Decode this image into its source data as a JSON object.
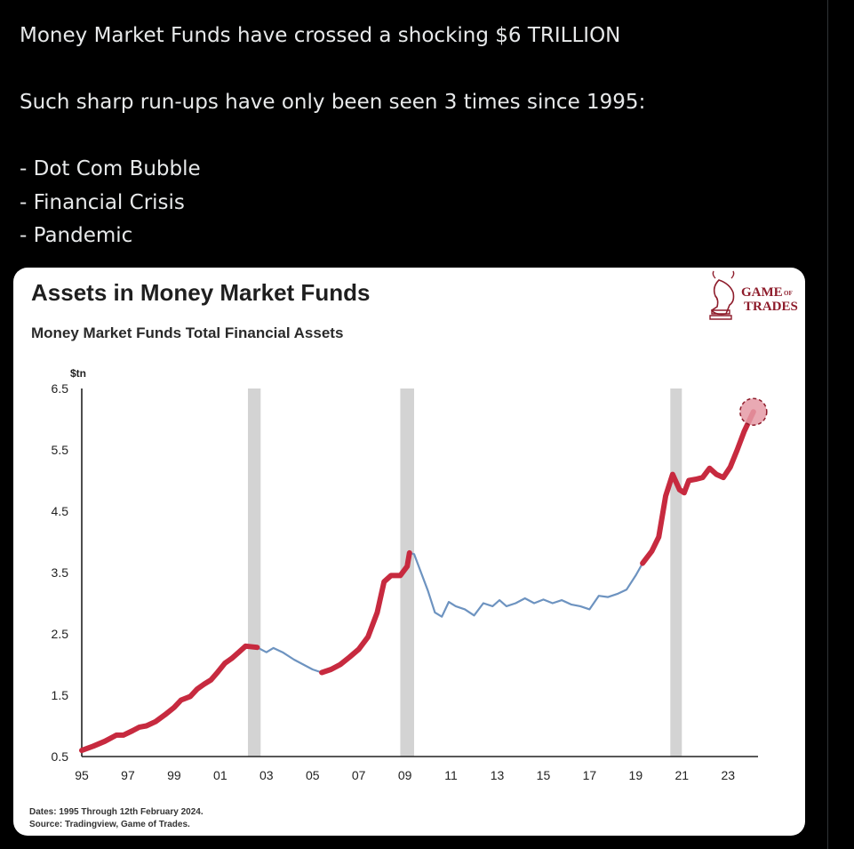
{
  "tweet": {
    "line1": "Money Market Funds have crossed a shocking $6 TRILLION",
    "line2": "Such sharp run-ups have only been seen 3 times since 1995:",
    "items": [
      "- Dot Com Bubble",
      "- Financial Crisis",
      "- Pandemic"
    ]
  },
  "logo": {
    "word1": "GAME",
    "word1_small": "OF",
    "word2": "TRADES",
    "icon": "chess-knight-bull-icon"
  },
  "colors": {
    "highlight": "#c72a3f",
    "baseline": "#6d93c0",
    "recession": "#d3d3d3",
    "endpoint": "#e59aa6"
  },
  "chart_data": {
    "type": "line",
    "title": "Assets in Money Market Funds",
    "subtitle": "Money Market Funds Total Financial Assets",
    "ylabel": "$tn",
    "ylim": [
      0.5,
      6.5
    ],
    "xlim": [
      1995,
      2024.3
    ],
    "yticks": [
      "6.5",
      "5.5",
      "4.5",
      "3.5",
      "2.5",
      "1.5",
      "0.5"
    ],
    "xticks": [
      "95",
      "97",
      "99",
      "01",
      "03",
      "05",
      "07",
      "09",
      "11",
      "13",
      "15",
      "17",
      "19",
      "21",
      "23"
    ],
    "recession_bands": [
      [
        2002.2,
        2002.75
      ],
      [
        2008.8,
        2009.4
      ],
      [
        2020.5,
        2021.0
      ]
    ],
    "highlight_ranges": [
      [
        1995,
        2002.6
      ],
      [
        2005.4,
        2009.2
      ],
      [
        2019.3,
        2024.1
      ]
    ],
    "series": [
      {
        "x": [
          1995.0,
          1995.5,
          1996.0,
          1996.5,
          1996.8,
          1997.2,
          1997.5,
          1997.8,
          1998.2,
          1998.6,
          1999.0,
          1999.3,
          1999.7,
          2000.0,
          2000.3,
          2000.6,
          2000.9,
          2001.2,
          2001.5,
          2001.8,
          2002.1,
          2002.6,
          2003.0,
          2003.3,
          2003.7,
          2004.2,
          2004.7,
          2005.0,
          2005.4,
          2005.8,
          2006.2,
          2006.6,
          2007.0,
          2007.4,
          2007.8,
          2008.1,
          2008.4,
          2008.8,
          2009.1,
          2009.2,
          2009.4,
          2009.7,
          2010.0,
          2010.3,
          2010.6,
          2010.9,
          2011.2,
          2011.6,
          2012.0,
          2012.4,
          2012.8,
          2013.1,
          2013.4,
          2013.8,
          2014.2,
          2014.6,
          2015.0,
          2015.4,
          2015.8,
          2016.2,
          2016.6,
          2017.0,
          2017.4,
          2017.8,
          2018.2,
          2018.6,
          2019.0,
          2019.3,
          2019.7,
          2020.0,
          2020.3,
          2020.6,
          2020.9,
          2021.1,
          2021.3,
          2021.6,
          2021.9,
          2022.2,
          2022.5,
          2022.8,
          2023.1,
          2023.4,
          2023.7,
          2024.1
        ],
        "values": [
          0.6,
          0.67,
          0.75,
          0.85,
          0.85,
          0.92,
          0.98,
          1.0,
          1.07,
          1.18,
          1.3,
          1.42,
          1.48,
          1.6,
          1.68,
          1.75,
          1.88,
          2.02,
          2.1,
          2.2,
          2.3,
          2.28,
          2.2,
          2.27,
          2.2,
          2.08,
          1.98,
          1.92,
          1.87,
          1.92,
          2.0,
          2.12,
          2.25,
          2.45,
          2.85,
          3.35,
          3.45,
          3.45,
          3.6,
          3.82,
          3.8,
          3.5,
          3.2,
          2.85,
          2.78,
          3.02,
          2.95,
          2.9,
          2.8,
          3.0,
          2.95,
          3.05,
          2.95,
          3.0,
          3.08,
          3.0,
          3.06,
          3.0,
          3.05,
          2.98,
          2.95,
          2.9,
          3.12,
          3.1,
          3.15,
          3.22,
          3.45,
          3.65,
          3.85,
          4.08,
          4.75,
          5.1,
          4.85,
          4.8,
          5.0,
          5.02,
          5.05,
          5.2,
          5.1,
          5.05,
          5.22,
          5.5,
          5.8,
          6.12
        ]
      }
    ],
    "endpoint": {
      "x": 2024.1,
      "y": 6.12
    },
    "footnotes": [
      "Dates: 1995 Through 12th February 2024.",
      "Source: Tradingview, Game of Trades."
    ]
  }
}
